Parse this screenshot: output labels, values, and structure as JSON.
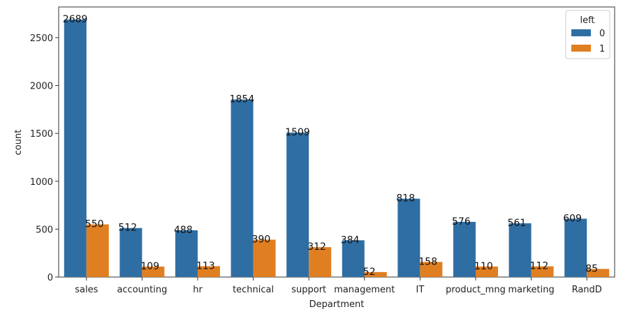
{
  "chart_data": {
    "type": "bar",
    "title": "",
    "xlabel": "Department",
    "ylabel": "count",
    "categories": [
      "sales",
      "accounting",
      "hr",
      "technical",
      "support",
      "management",
      "IT",
      "product_mng",
      "marketing",
      "RandD"
    ],
    "series": [
      {
        "name": "0",
        "color": "#2f6ea3",
        "values": [
          2689,
          512,
          488,
          1854,
          1509,
          384,
          818,
          576,
          561,
          609
        ]
      },
      {
        "name": "1",
        "color": "#e07f22",
        "values": [
          550,
          109,
          113,
          390,
          312,
          52,
          158,
          110,
          112,
          85
        ]
      }
    ],
    "yticks": [
      0,
      500,
      1000,
      1500,
      2000,
      2500
    ],
    "ylim": [
      0,
      2820
    ],
    "legend": {
      "title": "left",
      "placement": "top-right"
    },
    "grid": false
  }
}
